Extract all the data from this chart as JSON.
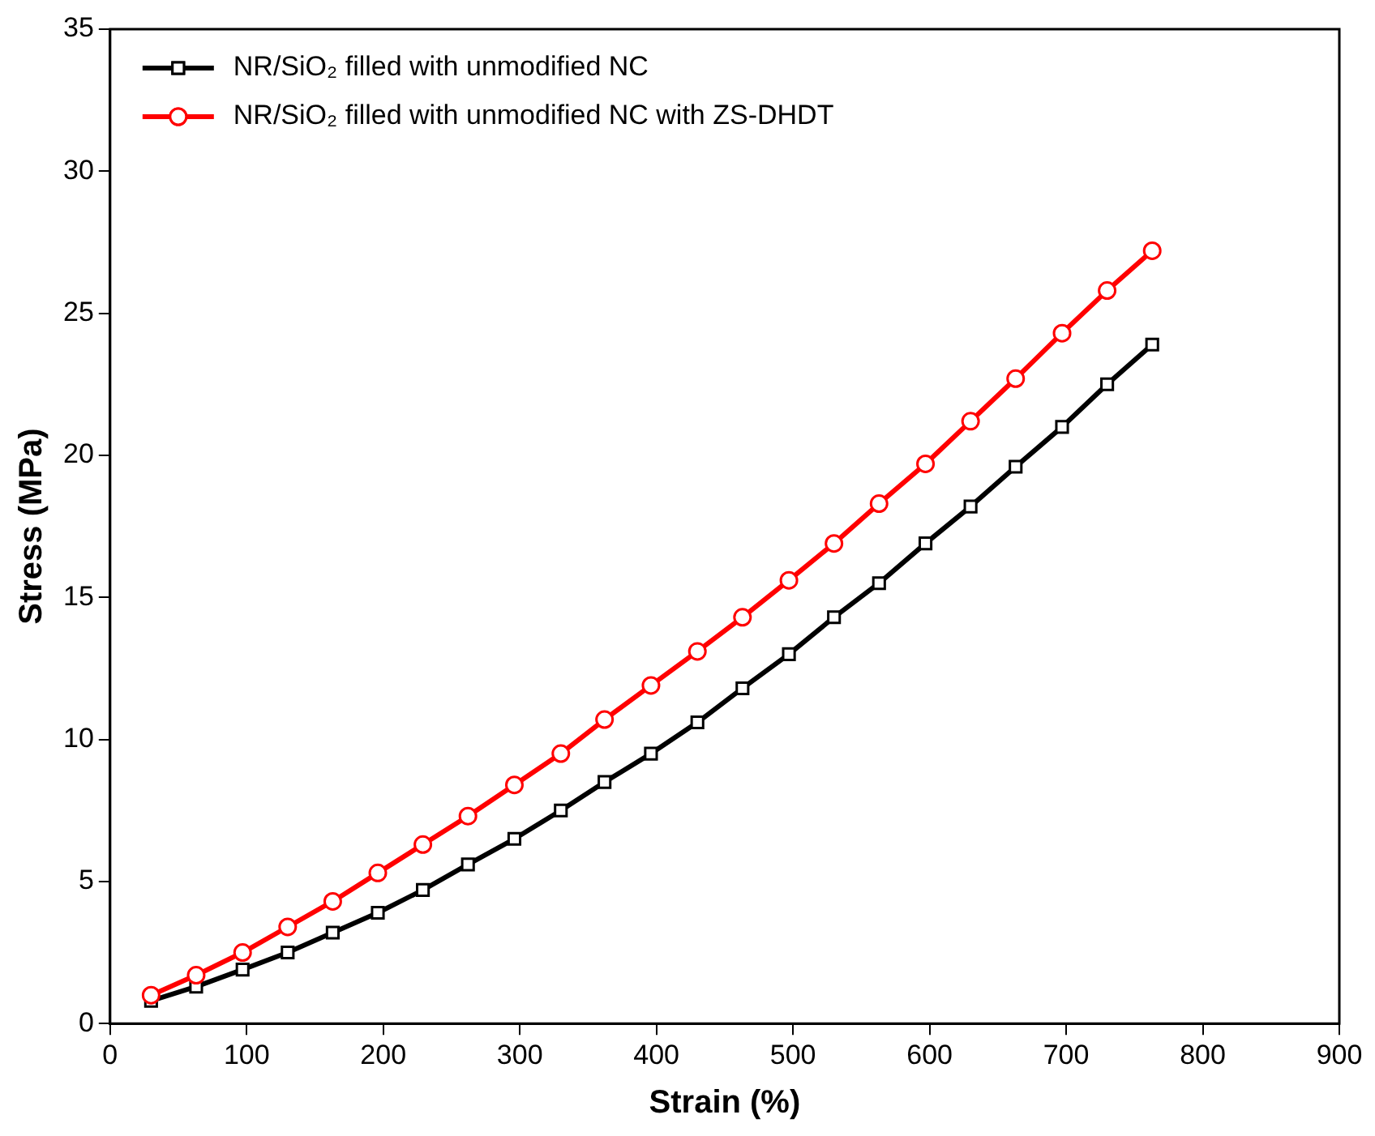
{
  "chart_data": {
    "type": "line",
    "xlabel": "Strain (%)",
    "ylabel": "Stress (MPa)",
    "xlim": [
      0,
      900
    ],
    "xticks": [
      0,
      100,
      200,
      300,
      400,
      500,
      600,
      700,
      800,
      900
    ],
    "ylim": [
      0,
      35
    ],
    "yticks": [
      0,
      5,
      10,
      15,
      20,
      25,
      30,
      35
    ],
    "grid": false,
    "legend": "top left",
    "line_style": "solid",
    "series": [
      {
        "name": "NR/SiO₂ filled with unmodified NC",
        "color": "#000000",
        "marker": "square",
        "x": [
          30,
          63,
          97,
          130,
          163,
          196,
          229,
          262,
          296,
          330,
          362,
          396,
          430,
          463,
          497,
          530,
          563,
          597,
          630,
          663,
          697,
          730,
          763
        ],
        "values": [
          0.8,
          1.3,
          1.9,
          2.5,
          3.2,
          3.9,
          4.7,
          5.6,
          6.5,
          7.5,
          8.5,
          9.5,
          10.6,
          11.8,
          13.0,
          14.3,
          15.5,
          16.9,
          18.2,
          19.6,
          21.0,
          22.5,
          23.9
        ]
      },
      {
        "name": "NR/SiO₂ filled with unmodified NC with ZS-DHDT",
        "color": "#ff0000",
        "marker": "circle",
        "x": [
          30,
          63,
          97,
          130,
          163,
          196,
          229,
          262,
          296,
          330,
          362,
          396,
          430,
          463,
          497,
          530,
          563,
          597,
          630,
          663,
          697,
          730,
          763
        ],
        "values": [
          1.0,
          1.7,
          2.5,
          3.4,
          4.3,
          5.3,
          6.3,
          7.3,
          8.4,
          9.5,
          10.7,
          11.9,
          13.1,
          14.3,
          15.6,
          16.9,
          18.3,
          19.7,
          21.2,
          22.7,
          24.3,
          25.8,
          27.2
        ]
      }
    ]
  }
}
